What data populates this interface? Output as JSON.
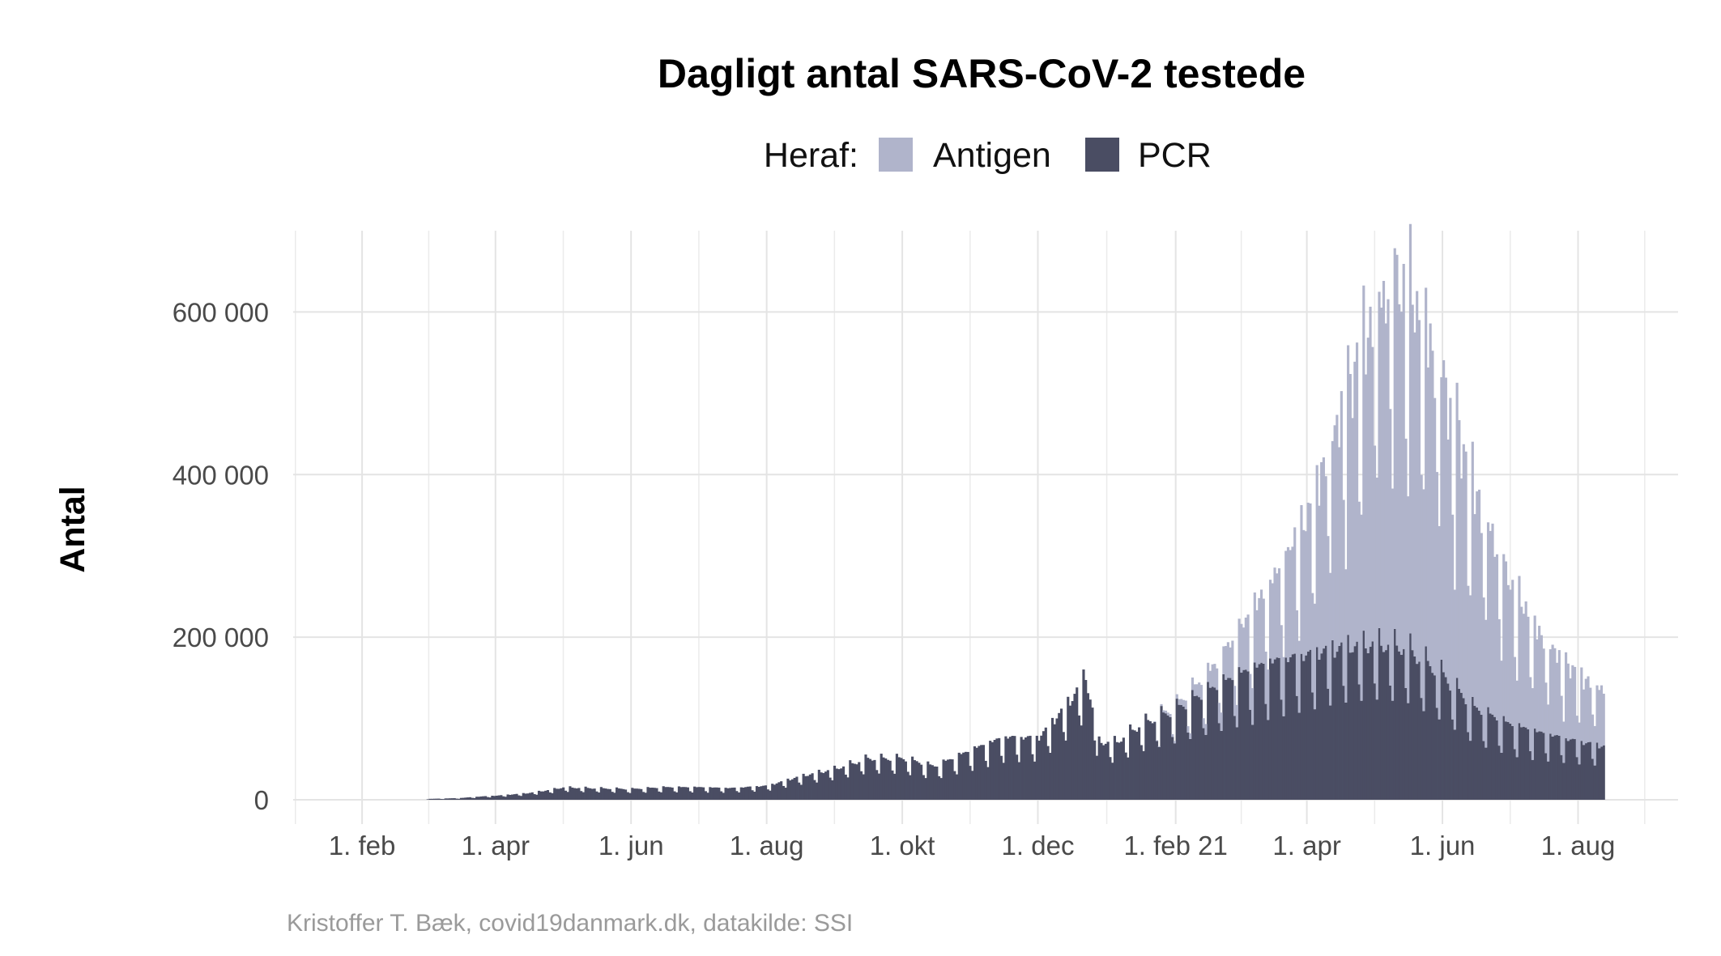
{
  "chart_data": {
    "type": "bar",
    "stacked": true,
    "title": "Dagligt antal SARS-CoV-2 testede",
    "legend": {
      "title": "Heraf:",
      "placement": "top-center",
      "entries": [
        {
          "name": "Antigen",
          "color": "#b0b4cb"
        },
        {
          "name": "PCR",
          "color": "#4a4d63"
        }
      ]
    },
    "ylabel": "Antal",
    "xlabel": "",
    "ylim": [
      0,
      700000
    ],
    "yticks": [
      0,
      200000,
      400000,
      600000
    ],
    "ytick_labels": [
      "0",
      "200 000",
      "400 000",
      "600 000"
    ],
    "xlim": [
      "2020-01-01",
      "2021-09-15"
    ],
    "xticks": [
      "2020-02-01",
      "2020-04-01",
      "2020-06-01",
      "2020-08-01",
      "2020-10-01",
      "2020-12-01",
      "2021-02-01",
      "2021-04-01",
      "2021-06-01",
      "2021-08-01"
    ],
    "xtick_labels": [
      "1. feb",
      "1. apr",
      "1. jun",
      "1. aug",
      "1. okt",
      "1. dec",
      "1. feb 21",
      "1. apr",
      "1. jun",
      "1. aug"
    ],
    "grid": true,
    "resolution": "daily",
    "series": [
      {
        "name": "PCR",
        "color": "#4a4d63",
        "points": [
          [
            "2020-03-01",
            1000
          ],
          [
            "2020-03-15",
            2000
          ],
          [
            "2020-03-25",
            4000
          ],
          [
            "2020-04-01",
            5000
          ],
          [
            "2020-04-15",
            8000
          ],
          [
            "2020-04-25",
            12000
          ],
          [
            "2020-05-01",
            15000
          ],
          [
            "2020-05-15",
            14000
          ],
          [
            "2020-06-01",
            13000
          ],
          [
            "2020-06-15",
            15000
          ],
          [
            "2020-07-01",
            15000
          ],
          [
            "2020-07-15",
            14000
          ],
          [
            "2020-08-01",
            17000
          ],
          [
            "2020-08-15",
            28000
          ],
          [
            "2020-09-01",
            38000
          ],
          [
            "2020-09-15",
            50000
          ],
          [
            "2020-10-01",
            50000
          ],
          [
            "2020-10-15",
            40000
          ],
          [
            "2020-11-01",
            60000
          ],
          [
            "2020-11-15",
            75000
          ],
          [
            "2020-12-01",
            75000
          ],
          [
            "2020-12-15",
            120000
          ],
          [
            "2020-12-22",
            150000
          ],
          [
            "2020-12-28",
            70000
          ],
          [
            "2021-01-05",
            70000
          ],
          [
            "2021-01-15",
            90000
          ],
          [
            "2021-02-01",
            110000
          ],
          [
            "2021-02-15",
            130000
          ],
          [
            "2021-03-01",
            150000
          ],
          [
            "2021-03-15",
            165000
          ],
          [
            "2021-04-01",
            175000
          ],
          [
            "2021-04-15",
            185000
          ],
          [
            "2021-05-01",
            190000
          ],
          [
            "2021-05-15",
            185000
          ],
          [
            "2021-06-01",
            150000
          ],
          [
            "2021-06-15",
            110000
          ],
          [
            "2021-07-01",
            90000
          ],
          [
            "2021-07-15",
            80000
          ],
          [
            "2021-08-01",
            70000
          ],
          [
            "2021-08-12",
            65000
          ]
        ]
      },
      {
        "name": "Antigen",
        "color": "#b0b4cb",
        "points": [
          [
            "2021-01-20",
            0
          ],
          [
            "2021-02-01",
            5000
          ],
          [
            "2021-02-15",
            20000
          ],
          [
            "2021-03-01",
            50000
          ],
          [
            "2021-03-15",
            90000
          ],
          [
            "2021-04-01",
            160000
          ],
          [
            "2021-04-15",
            270000
          ],
          [
            "2021-05-01",
            380000
          ],
          [
            "2021-05-10",
            420000
          ],
          [
            "2021-05-20",
            400000
          ],
          [
            "2021-06-01",
            340000
          ],
          [
            "2021-06-15",
            250000
          ],
          [
            "2021-07-01",
            160000
          ],
          [
            "2021-07-15",
            110000
          ],
          [
            "2021-08-01",
            75000
          ],
          [
            "2021-08-12",
            65000
          ]
        ]
      }
    ],
    "caption": "Kristoffer T. Bæk, covid19danmark.dk, datakilde: SSI"
  }
}
